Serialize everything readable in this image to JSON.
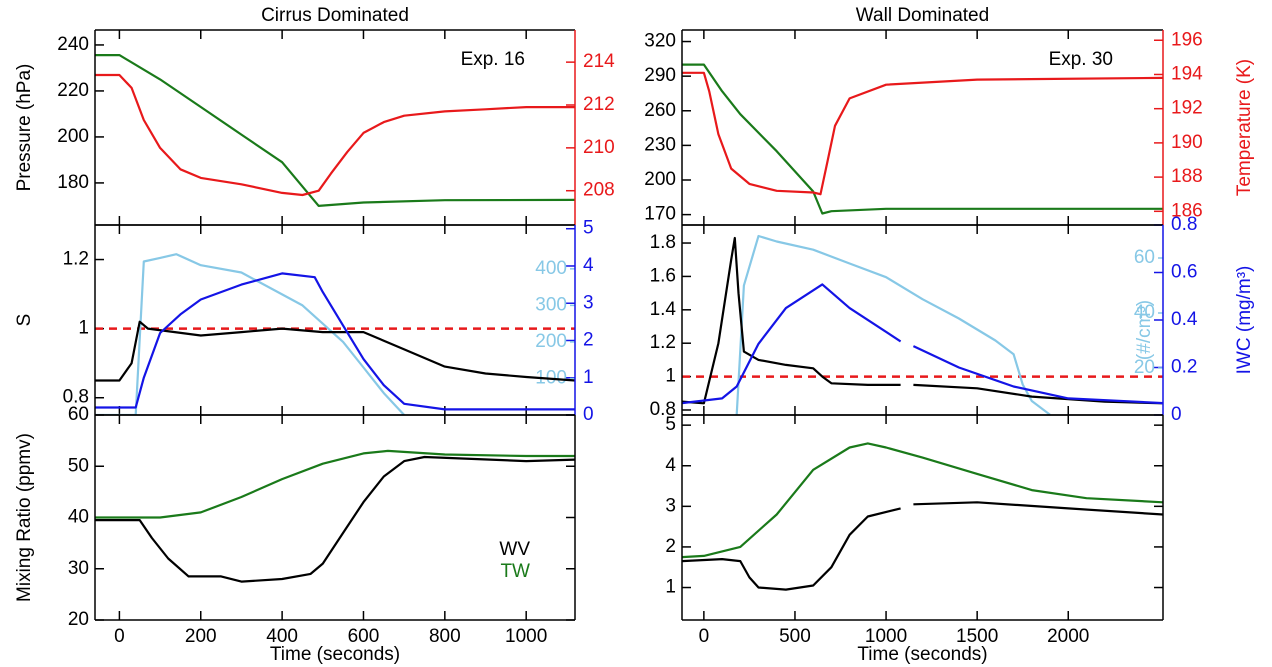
{
  "chart_data": [
    {
      "type": "line",
      "title": "Cirrus Dominated",
      "annotation": "Exp. 16",
      "xlabel": "Time (seconds)",
      "xlim": [
        -60,
        1120
      ],
      "xticks": [
        0,
        200,
        400,
        600,
        800,
        1000
      ],
      "panels": [
        {
          "ylabel": "Pressure (hPa)",
          "ylim": [
            161.7,
            246.5
          ],
          "yticks": [
            180,
            200,
            220,
            240
          ],
          "ycolor": "#000000",
          "y2lim": [
            206.4,
            215.5
          ],
          "y2ticks": [
            208,
            210,
            212,
            214
          ],
          "y2color": "#e8191b",
          "series": [
            {
              "color": "#1a7a1a",
              "x": [
                -60,
                0,
                100,
                200,
                300,
                400,
                490,
                600,
                800,
                1120
              ],
              "values": [
                235.6,
                235.6,
                225,
                213,
                201,
                189,
                170,
                171.5,
                172.5,
                172.6
              ]
            },
            {
              "color": "#e8191b",
              "axis": "y2",
              "x": [
                -60,
                0,
                30,
                60,
                100,
                150,
                200,
                300,
                400,
                450,
                490,
                520,
                560,
                600,
                650,
                700,
                800,
                900,
                1000,
                1120
              ],
              "values": [
                213.4,
                213.4,
                212.8,
                211.3,
                210,
                209,
                208.6,
                208.3,
                207.9,
                207.8,
                208,
                208.8,
                209.8,
                210.7,
                211.2,
                211.5,
                211.7,
                211.8,
                211.9,
                211.9
              ]
            }
          ]
        },
        {
          "ylabel": "S",
          "ylim": [
            0.75,
            1.3
          ],
          "yticks": [
            0.8,
            1.0,
            1.2
          ],
          "ycolor": "#000000",
          "y2lim": [
            0,
            5.1
          ],
          "y2ticks": [
            0,
            1,
            2,
            3,
            4,
            5
          ],
          "y2color": "#1414e6",
          "y3lim": [
            0,
            520
          ],
          "y3ticks": [
            100,
            200,
            300,
            400
          ],
          "y3color": "#87c8e6",
          "reference_line": {
            "value": 1.0,
            "color": "#e8191b"
          },
          "series": [
            {
              "color": "#87c8e6",
              "axis": "y3",
              "x": [
                -60,
                40,
                60,
                100,
                140,
                200,
                300,
                400,
                450,
                500,
                550,
                600,
                650,
                700
              ],
              "values": [
                0,
                0,
                420,
                430,
                440,
                410,
                390,
                330,
                300,
                250,
                200,
                130,
                60,
                0
              ]
            },
            {
              "color": "#000000",
              "x": [
                -60,
                0,
                30,
                50,
                70,
                200,
                300,
                400,
                500,
                600,
                700,
                800,
                900,
                1000,
                1120
              ],
              "values": [
                0.85,
                0.85,
                0.9,
                1.02,
                1.0,
                0.98,
                0.99,
                1.0,
                0.99,
                0.99,
                0.94,
                0.89,
                0.87,
                0.86,
                0.85
              ]
            },
            {
              "color": "#1414e6",
              "axis": "y2",
              "x": [
                -60,
                40,
                60,
                100,
                150,
                200,
                300,
                400,
                480,
                500,
                550,
                600,
                650,
                700,
                800,
                1120
              ],
              "values": [
                0.2,
                0.2,
                1.0,
                2.2,
                2.7,
                3.1,
                3.5,
                3.8,
                3.7,
                3.3,
                2.4,
                1.5,
                0.8,
                0.3,
                0.15,
                0.15
              ]
            }
          ]
        },
        {
          "ylabel": "Mixing Ratio (ppmv)",
          "ylim": [
            20,
            60
          ],
          "yticks": [
            20,
            30,
            40,
            50,
            60
          ],
          "ycolor": "#000000",
          "legend": "bottom-right",
          "series": [
            {
              "name": "WV",
              "color": "#000000",
              "x": [
                -60,
                50,
                80,
                120,
                170,
                250,
                300,
                400,
                470,
                500,
                550,
                600,
                650,
                700,
                750,
                850,
                1000,
                1120
              ],
              "values": [
                39.5,
                39.5,
                36,
                32,
                28.5,
                28.5,
                27.5,
                28,
                29,
                31,
                37,
                43,
                48,
                51,
                51.8,
                51.5,
                51,
                51.3
              ]
            },
            {
              "name": "TW",
              "color": "#1a7a1a",
              "x": [
                -60,
                100,
                200,
                300,
                400,
                500,
                600,
                660,
                800,
                1000,
                1120
              ],
              "values": [
                40,
                40,
                41,
                44,
                47.5,
                50.5,
                52.5,
                53,
                52.3,
                52,
                52
              ]
            }
          ]
        }
      ]
    },
    {
      "type": "line",
      "title": "Wall Dominated",
      "annotation": "Exp. 30",
      "xlabel": "Time (seconds)",
      "xlim": [
        -120,
        2520
      ],
      "xticks": [
        0,
        500,
        1000,
        1500,
        2000
      ],
      "panels": [
        {
          "ylim": [
            161,
            330
          ],
          "yticks": [
            170,
            200,
            230,
            260,
            290,
            320
          ],
          "ycolor": "#000000",
          "y2label": "Temperature (K)",
          "y2lim": [
            185.2,
            196.6
          ],
          "y2ticks": [
            186,
            188,
            190,
            192,
            194,
            196
          ],
          "y2color": "#e8191b",
          "series": [
            {
              "color": "#1a7a1a",
              "x": [
                -120,
                0,
                100,
                200,
                400,
                600,
                650,
                700,
                1000,
                2520
              ],
              "values": [
                300,
                300,
                277,
                257,
                225,
                190,
                171,
                173,
                175,
                175
              ]
            },
            {
              "color": "#e8191b",
              "axis": "y2",
              "x": [
                -120,
                0,
                30,
                80,
                150,
                250,
                400,
                600,
                640,
                680,
                720,
                800,
                1000,
                1500,
                2520
              ],
              "values": [
                194.1,
                194.1,
                193,
                190.5,
                188.5,
                187.6,
                187.2,
                187.1,
                187,
                189,
                191,
                192.6,
                193.4,
                193.7,
                193.8
              ]
            }
          ]
        },
        {
          "ylim": [
            0.77,
            1.908
          ],
          "yticks": [
            0.8,
            1.0,
            1.2,
            1.4,
            1.6,
            1.8
          ],
          "ycolor": "#000000",
          "y2label": "IWC (mg/m³)",
          "y2lim": [
            0,
            0.8
          ],
          "y2ticks": [
            0.0,
            0.2,
            0.4,
            0.6,
            0.8
          ],
          "y2color": "#1414e6",
          "y3label": "(#/cm³)",
          "y3lim": [
            2.9,
            72
          ],
          "y3ticks": [
            20,
            40,
            60
          ],
          "y3color": "#87c8e6",
          "reference_line": {
            "value": 1.0,
            "color": "#e8191b"
          },
          "series": [
            {
              "color": "#87c8e6",
              "axis": "y3",
              "x": [
                180,
                220,
                300,
                400,
                600,
                800,
                1000,
                1200,
                1400,
                1600,
                1700,
                1750,
                1800,
                1900
              ],
              "values": [
                3,
                50,
                68,
                66,
                63,
                58,
                53,
                45,
                38,
                30,
                25,
                14,
                8,
                3
              ]
            },
            {
              "color": "#000000",
              "x": [
                -120,
                0,
                80,
                150,
                170,
                190,
                220,
                300,
                450,
                600,
                650,
                700,
                900,
                1080,
                null,
                1150,
                1500,
                1800,
                2200,
                2520
              ],
              "values": [
                0.85,
                0.84,
                1.2,
                1.7,
                1.83,
                1.5,
                1.15,
                1.1,
                1.07,
                1.05,
                1.0,
                0.96,
                0.95,
                0.95,
                null,
                0.95,
                0.93,
                0.88,
                0.85,
                0.84
              ]
            },
            {
              "color": "#1414e6",
              "axis": "y2",
              "x": [
                -120,
                100,
                180,
                300,
                450,
                650,
                800,
                1080,
                null,
                1150,
                1400,
                1700,
                2000,
                2520
              ],
              "values": [
                0.05,
                0.07,
                0.12,
                0.3,
                0.45,
                0.55,
                0.45,
                0.31,
                null,
                0.29,
                0.2,
                0.12,
                0.07,
                0.05
              ]
            }
          ]
        },
        {
          "ylim": [
            0.2,
            5.25
          ],
          "yticks": [
            1,
            2,
            3,
            4,
            5
          ],
          "ycolor": "#000000",
          "series": [
            {
              "color": "#1a7a1a",
              "x": [
                -120,
                0,
                200,
                400,
                600,
                800,
                900,
                1000,
                1200,
                1500,
                1800,
                2100,
                2520
              ],
              "values": [
                1.75,
                1.78,
                2.0,
                2.8,
                3.9,
                4.45,
                4.55,
                4.45,
                4.2,
                3.8,
                3.4,
                3.2,
                3.1
              ]
            },
            {
              "color": "#000000",
              "x": [
                -120,
                100,
                200,
                250,
                300,
                450,
                600,
                700,
                800,
                900,
                1080,
                null,
                1150,
                1500,
                2000,
                2520
              ],
              "values": [
                1.65,
                1.7,
                1.65,
                1.25,
                1.0,
                0.95,
                1.05,
                1.5,
                2.3,
                2.75,
                2.95,
                null,
                3.05,
                3.1,
                2.95,
                2.8
              ]
            }
          ]
        }
      ]
    }
  ]
}
